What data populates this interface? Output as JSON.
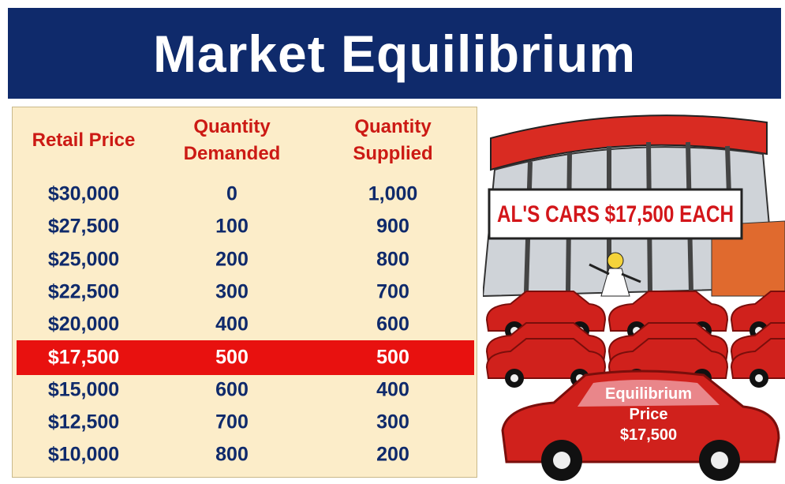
{
  "header": {
    "title": "Market Equilibrium"
  },
  "table": {
    "columns": [
      "Retail Price",
      "Quantity Demanded",
      "Quantity Supplied"
    ],
    "rows": [
      [
        "$30,000",
        "0",
        "1,000"
      ],
      [
        "$27,500",
        "100",
        "900"
      ],
      [
        "$25,000",
        "200",
        "800"
      ],
      [
        "$22,500",
        "300",
        "700"
      ],
      [
        "$20,000",
        "400",
        "600"
      ],
      [
        "$17,500",
        "500",
        "500"
      ],
      [
        "$15,000",
        "600",
        "400"
      ],
      [
        "$12,500",
        "700",
        "300"
      ],
      [
        "$10,000",
        "800",
        "200"
      ]
    ],
    "highlight_row": 5
  },
  "illustration": {
    "sign": "AL'S CARS $17,500 EACH",
    "car_label": [
      "Equilibrium",
      "Price",
      "$17,500"
    ]
  }
}
